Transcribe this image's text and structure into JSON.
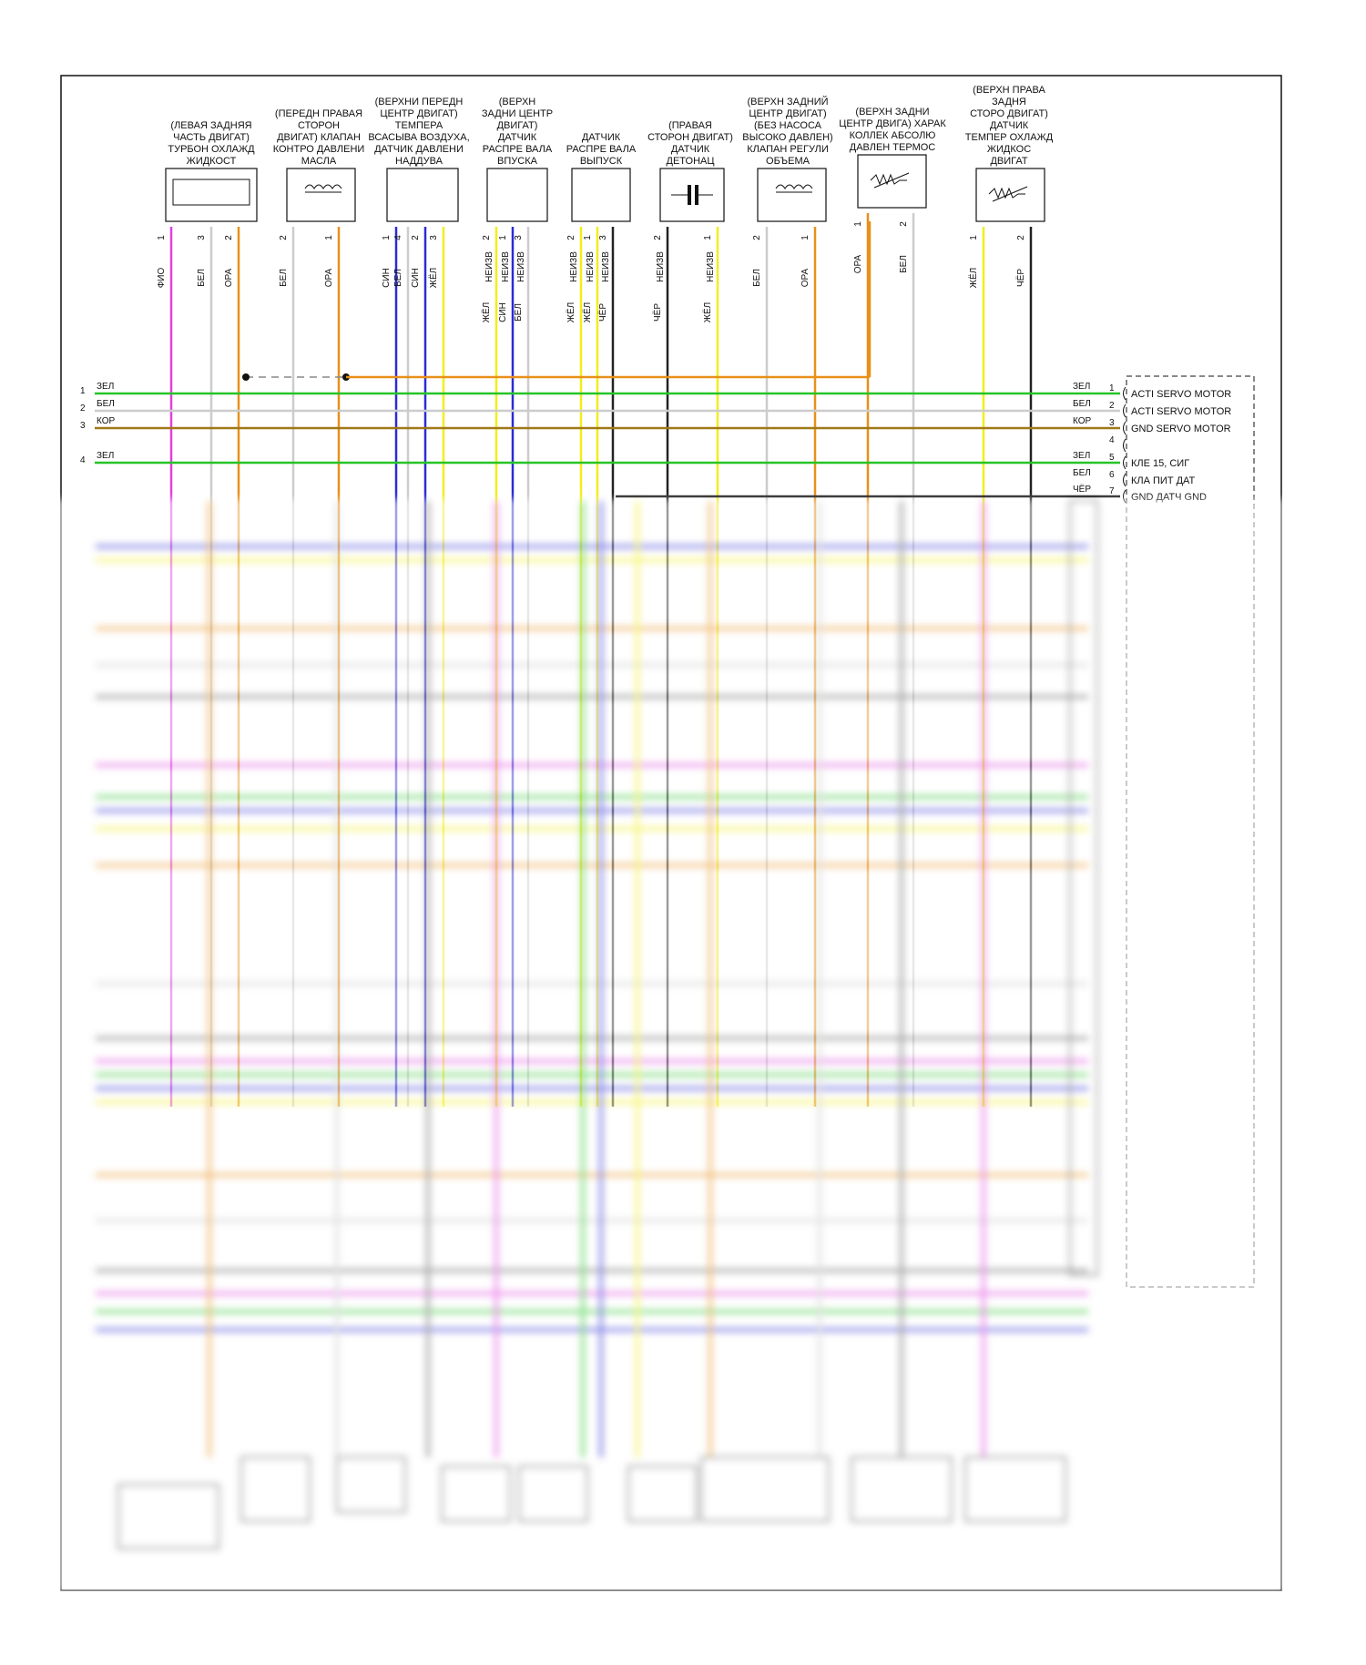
{
  "components": [
    {
      "id": "c1",
      "lines": [
        "(ЛЕВАЯ ЗАДНЯЯ",
        "ЧАСТЬ ДВИГАТ)",
        "ТУРБОН ОХЛАЖД",
        "ЖИДКОСТ"
      ],
      "pins": [
        {
          "n": "1",
          "wire": "ФИО",
          "color": "#e040e0"
        },
        {
          "n": "3",
          "wire": "БЕЛ",
          "color": "#cccccc"
        },
        {
          "n": "2",
          "wire": "ОРА",
          "color": "#e8901a"
        }
      ]
    },
    {
      "id": "c2",
      "lines": [
        "(ПЕРЕДН ПРАВАЯ",
        "СТОРОН",
        "ДВИГАТ) КЛАПАН",
        "КОНТРО ДАВЛЕНИ",
        "МАСЛА"
      ],
      "pins": [
        {
          "n": "2",
          "wire": "БЕЛ",
          "color": "#cccccc"
        },
        {
          "n": "1",
          "wire": "ОРА",
          "color": "#e8901a"
        }
      ]
    },
    {
      "id": "c3",
      "lines": [
        "(ВЕРХНИ ПЕРЕДН",
        "ЦЕНТР ДВИГАТ)",
        "ТЕМПЕРА",
        "ВСАСЫВА ВОЗДУХА,",
        "ДАТЧИК ДАВЛЕНИ",
        "НАДДУВА"
      ],
      "pins": [
        {
          "n": "1",
          "wire": "СИН",
          "color": "#2b2bd6"
        },
        {
          "n": "4",
          "wire": "БЕЛ",
          "color": "#cccccc"
        },
        {
          "n": "2",
          "wire": "СИН",
          "color": "#2b2bd6"
        },
        {
          "n": "3",
          "wire": "ЖЁЛ",
          "color": "#f2ee1a"
        }
      ]
    },
    {
      "id": "c4",
      "lines": [
        "(ВЕРХН",
        "ЗАДНИ ЦЕНТР",
        "ДВИГАТ)",
        "ДАТЧИК",
        "РАСПРЕ ВАЛА",
        "ВПУСКА"
      ],
      "pins": [
        {
          "n": "2",
          "wire": "ЖЁЛ",
          "color": "#f2ee1a"
        },
        {
          "n": "1",
          "wire": "СИН",
          "color": "#2b2bd6"
        },
        {
          "n": "3",
          "wire": "БЕЛ",
          "color": "#cccccc"
        }
      ],
      "shield": "НЕИЗВ"
    },
    {
      "id": "c5",
      "lines": [
        "ДАТЧИК",
        "РАСПРЕ ВАЛА",
        "ВЫПУСК"
      ],
      "pins": [
        {
          "n": "2",
          "wire": "ЖЁЛ",
          "color": "#f2ee1a"
        },
        {
          "n": "1",
          "wire": "ЖЁЛ",
          "color": "#f2ee1a"
        },
        {
          "n": "3",
          "wire": "ЧЁР",
          "color": "#222222"
        }
      ],
      "shield": "НЕИЗВ"
    },
    {
      "id": "c6",
      "lines": [
        "(ПРАВАЯ",
        "СТОРОН ДВИГАТ)",
        "ДАТЧИК",
        "ДЕТОНАЦ"
      ],
      "pins": [
        {
          "n": "2",
          "wire": "ЧЁР",
          "color": "#222222"
        },
        {
          "n": "1",
          "wire": "ЖЁЛ",
          "color": "#f2ee1a"
        }
      ],
      "shield": "НЕИЗВ"
    },
    {
      "id": "c7",
      "lines": [
        "(ВЕРХН ЗАДНИЙ",
        "ЦЕНТР ДВИГАТ)",
        "(БЕЗ НАСОСА",
        "ВЫСОКО ДАВЛЕН)",
        "КЛАПАН РЕГУЛИ",
        "ОБЪЕМА"
      ],
      "pins": [
        {
          "n": "2",
          "wire": "БЕЛ",
          "color": "#cccccc"
        },
        {
          "n": "1",
          "wire": "ОРА",
          "color": "#e8901a"
        }
      ]
    },
    {
      "id": "c8",
      "lines": [
        "(ВЕРХН ЗАДНИ",
        "ЦЕНТР ДВИГА) ХАРАК",
        "КОЛЛЕК АБСОЛЮ",
        "ДАВЛЕН ТЕРМОС"
      ],
      "pins": [
        {
          "n": "1",
          "wire": "ОРА",
          "color": "#e8901a"
        },
        {
          "n": "2",
          "wire": "БЕЛ",
          "color": "#cccccc"
        }
      ]
    },
    {
      "id": "c9",
      "lines": [
        "(ВЕРХН ПРАВА",
        "ЗАДНЯ",
        "СТОРО ДВИГАТ)",
        "ДАТЧИК",
        "ТЕМПЕР ОХЛАЖД",
        "ЖИДКОС",
        "ДВИГАТ"
      ],
      "pins": [
        {
          "n": "1",
          "wire": "ЖЁЛ",
          "color": "#f2ee1a"
        },
        {
          "n": "2",
          "wire": "ЧЁР",
          "color": "#222222"
        }
      ]
    }
  ],
  "left_wires": [
    {
      "n": "1",
      "label": "ЗЕЛ",
      "color": "#27c427"
    },
    {
      "n": "2",
      "label": "БЕЛ",
      "color": "#cccccc"
    },
    {
      "n": "3",
      "label": "КОР",
      "color": "#a07818"
    },
    {
      "n": "4",
      "label": "ЗЕЛ",
      "color": "#27c427"
    }
  ],
  "right_connector": [
    {
      "n": "1",
      "wire": "ЗЕЛ",
      "text": "ACTI SERVO MOTOR",
      "color": "#27c427"
    },
    {
      "n": "2",
      "wire": "БЕЛ",
      "text": "ACTI SERVO MOTOR",
      "color": "#cccccc"
    },
    {
      "n": "3",
      "wire": "КОР",
      "text": "GND SERVO MOTOR",
      "color": "#a07818"
    },
    {
      "n": "4",
      "wire": "",
      "text": "",
      "color": ""
    },
    {
      "n": "5",
      "wire": "ЗЕЛ",
      "text": "КЛЕ 15, СИГ",
      "color": "#27c427"
    },
    {
      "n": "6",
      "wire": "БЕЛ",
      "text": "КЛА ПИТ ДАТ",
      "color": "#cccccc"
    },
    {
      "n": "7",
      "wire": "ЧЁР",
      "text": "GND ДАТЧ GND",
      "color": "#222222"
    }
  ]
}
